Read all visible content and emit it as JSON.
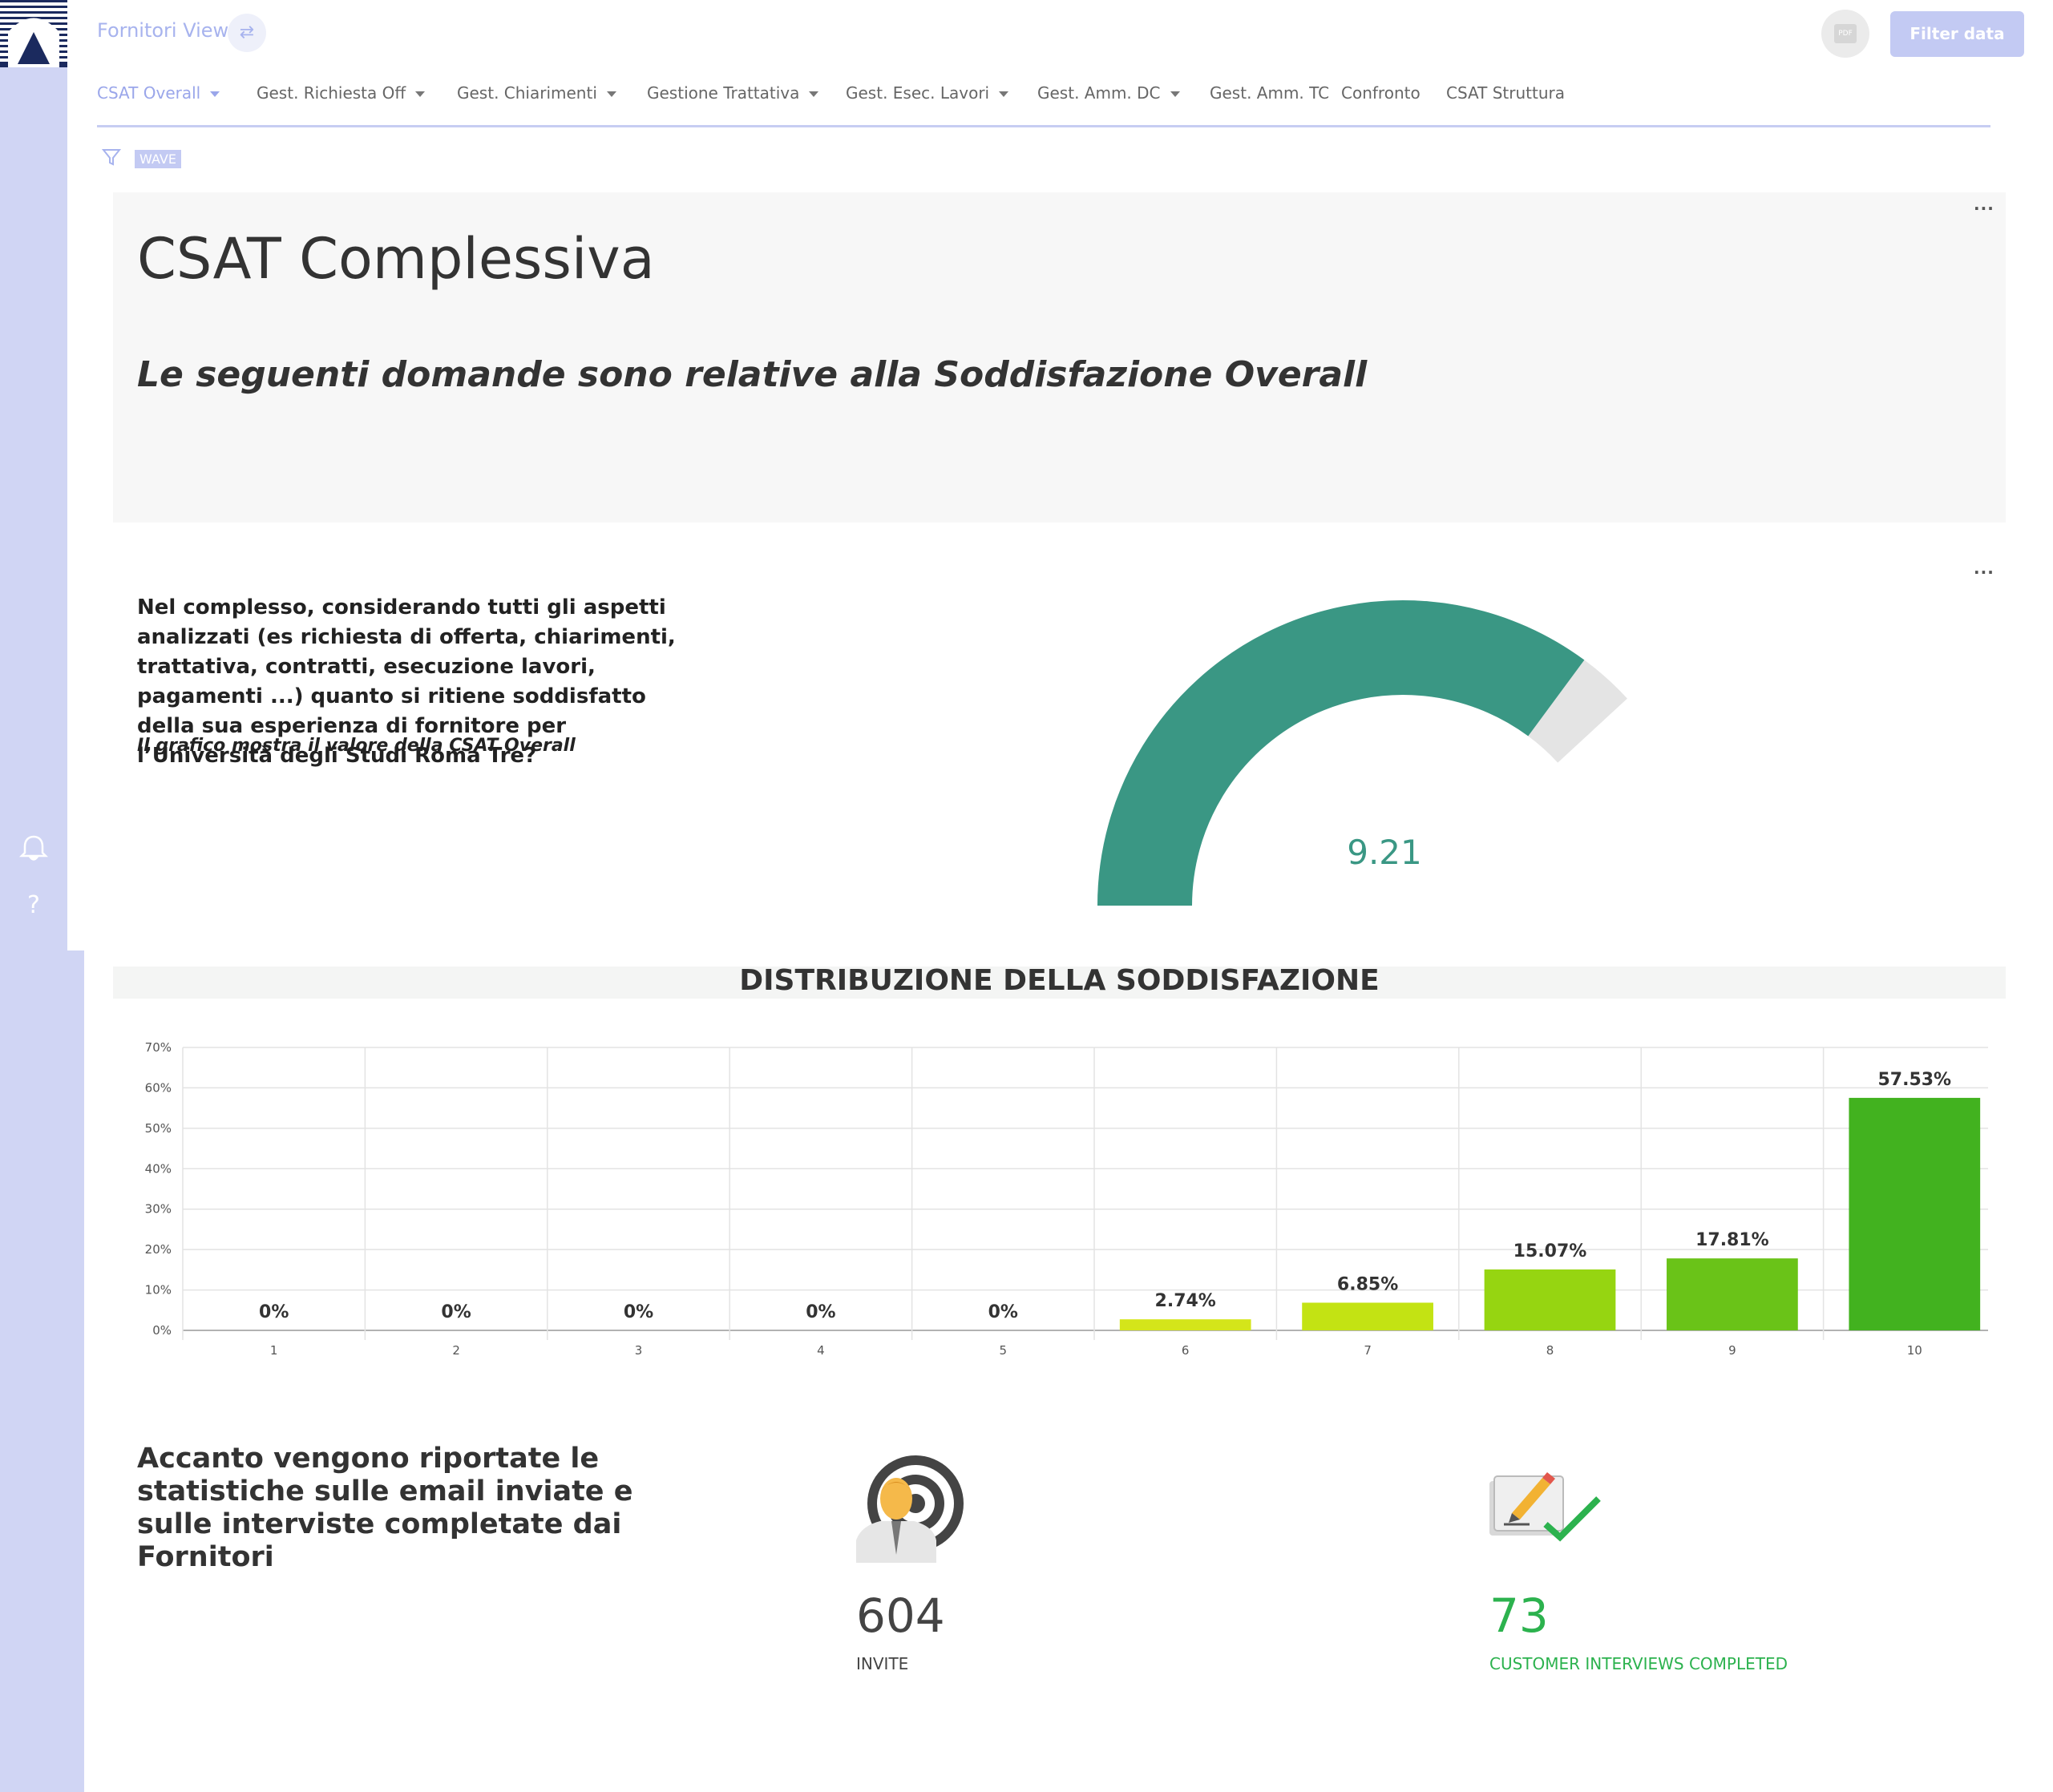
{
  "header": {
    "app_title": "Fornitori View",
    "filter_button": "Filter data",
    "pdf_label": "PDF"
  },
  "tabs": [
    {
      "label": "CSAT Overall",
      "has_dropdown": true,
      "active": true
    },
    {
      "label": "Gest. Richiesta Off",
      "has_dropdown": true
    },
    {
      "label": "Gest. Chiarimenti",
      "has_dropdown": true
    },
    {
      "label": "Gestione Trattativa",
      "has_dropdown": true
    },
    {
      "label": "Gest. Esec. Lavori",
      "has_dropdown": true
    },
    {
      "label": "Gest. Amm. DC",
      "has_dropdown": true
    },
    {
      "label": "Gest. Amm. TC",
      "has_dropdown": false
    },
    {
      "label": "Confronto",
      "has_dropdown": false
    },
    {
      "label": "CSAT Struttura",
      "has_dropdown": false
    }
  ],
  "filter_chip": "WAVE",
  "title_card": {
    "title": "CSAT Complessiva",
    "subtitle": "Le seguenti domande sono relative alla Soddisfazione Overall"
  },
  "question": {
    "text": "Nel complesso, considerando tutti gli aspetti analizzati (es richiesta di offerta, chiarimenti, trattativa, contratti, esecuzione lavori, pagamenti ...) quanto si ritiene soddisfatto della sua esperienza di fornitore per l’Università degli Studi Roma Tre?",
    "note": "Il grafico mostra il valore della CSAT Overall"
  },
  "gauge": {
    "value": 9.21,
    "value_label": "9.21",
    "min": 0,
    "max": 10,
    "fill_color": "#3a9784",
    "track_color": "#e4e4e4"
  },
  "distribution": {
    "title": "DISTRIBUZIONE DELLA SODDISFAZIONE"
  },
  "chart_data": {
    "type": "bar",
    "title": "DISTRIBUZIONE DELLA SODDISFAZIONE",
    "categories": [
      "1",
      "2",
      "3",
      "4",
      "5",
      "6",
      "7",
      "8",
      "9",
      "10"
    ],
    "values": [
      0,
      0,
      0,
      0,
      0,
      2.74,
      6.85,
      15.07,
      17.81,
      57.53
    ],
    "data_labels": [
      "0%",
      "0%",
      "0%",
      "0%",
      "0%",
      "2.74%",
      "6.85%",
      "15.07%",
      "17.81%",
      "57.53%"
    ],
    "yticks": [
      "0%",
      "10%",
      "20%",
      "30%",
      "40%",
      "50%",
      "60%",
      "70%"
    ],
    "ylim": [
      0,
      70
    ],
    "grid": true,
    "bar_colors": [
      "#d9e21b",
      "#d9e21b",
      "#d9e21b",
      "#d9e21b",
      "#d9e21b",
      "#d4e51a",
      "#c3e313",
      "#96d511",
      "#6ac318",
      "#42b21f"
    ]
  },
  "stats": {
    "text": "Accanto vengono riportate le statistiche sulle email inviate e sulle interviste completate dai Fornitori",
    "invite_value": "604",
    "invite_label": "INVITE",
    "interviews_value": "73",
    "interviews_label": "CUSTOMER INTERVIEWS COMPLETED"
  }
}
